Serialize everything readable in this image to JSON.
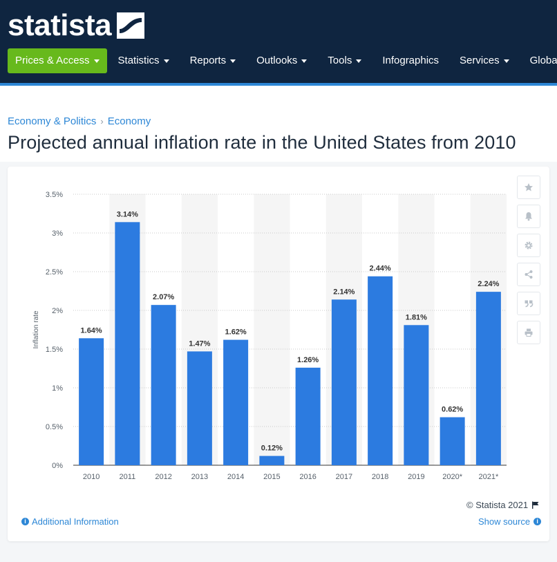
{
  "header": {
    "logo_text": "statista",
    "nav": [
      {
        "label": "Prices & Access",
        "caret": true,
        "primary": true
      },
      {
        "label": "Statistics",
        "caret": true
      },
      {
        "label": "Reports",
        "caret": true
      },
      {
        "label": "Outlooks",
        "caret": true
      },
      {
        "label": "Tools",
        "caret": true
      },
      {
        "label": "Infographics",
        "caret": false
      },
      {
        "label": "Services",
        "caret": true
      },
      {
        "label": "Global Surv",
        "caret": false
      }
    ]
  },
  "breadcrumb": [
    "Economy & Politics",
    "Economy"
  ],
  "page_title": "Projected annual inflation rate in the United States from 2010",
  "colors": {
    "header_bg": "#0f2540",
    "accent": "#2d87d6",
    "primary_button": "#67b91c",
    "bar": "#2c7be0"
  },
  "tools": [
    {
      "icon": "star-icon"
    },
    {
      "icon": "bell-icon"
    },
    {
      "icon": "gear-icon"
    },
    {
      "icon": "share-icon"
    },
    {
      "icon": "quote-icon"
    },
    {
      "icon": "print-icon"
    }
  ],
  "chart_data": {
    "type": "bar",
    "categories": [
      "2010",
      "2011",
      "2012",
      "2013",
      "2014",
      "2015",
      "2016",
      "2017",
      "2018",
      "2019",
      "2020*",
      "2021*"
    ],
    "values": [
      1.64,
      3.14,
      2.07,
      1.47,
      1.62,
      0.12,
      1.26,
      2.14,
      2.44,
      1.81,
      0.62,
      2.24
    ],
    "value_labels": [
      "1.64%",
      "3.14%",
      "2.07%",
      "1.47%",
      "1.62%",
      "0.12%",
      "1.26%",
      "2.14%",
      "2.44%",
      "1.81%",
      "0.62%",
      "2.24%"
    ],
    "ylabel": "Inflation rate",
    "ylim": [
      0,
      3.5
    ],
    "yticks": [
      0,
      0.5,
      1,
      1.5,
      2,
      2.5,
      3,
      3.5
    ],
    "ytick_labels": [
      "0%",
      "0.5%",
      "1%",
      "1.5%",
      "2%",
      "2.5%",
      "3%",
      "3.5%"
    ],
    "grid": true,
    "gridlines": "dotted horizontal",
    "alternating_column_shading": true
  },
  "footer": {
    "copyright": "© Statista 2021",
    "additional_info": "Additional Information",
    "show_source": "Show source"
  }
}
